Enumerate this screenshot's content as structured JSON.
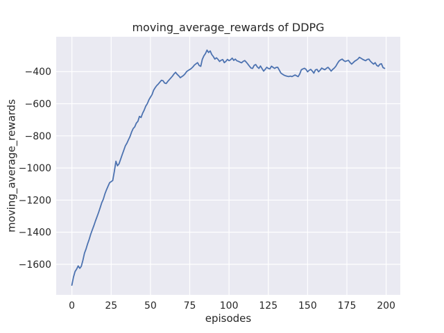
{
  "chart_data": {
    "type": "line",
    "title": "moving_average_rewards of DDPG",
    "xlabel": "episodes",
    "ylabel": "moving_average_rewards",
    "xlim": [
      -10,
      209
    ],
    "ylim": [
      -1790,
      -183
    ],
    "xticks": [
      0,
      25,
      50,
      75,
      100,
      125,
      150,
      175,
      200
    ],
    "yticks": [
      -400,
      -600,
      -800,
      -1000,
      -1200,
      -1400,
      -1600
    ],
    "grid": true,
    "legend": false,
    "plot_bg": "#EAEAF2",
    "grid_color": "#FFFFFF",
    "fig_bg": "#FFFFFF",
    "text_color": "#262626",
    "series": [
      {
        "name": "moving_average_rewards",
        "color": "#4C72B0",
        "x_start": 0,
        "x_step": 1,
        "values": [
          -1730,
          -1680,
          -1645,
          -1630,
          -1610,
          -1625,
          -1612,
          -1575,
          -1530,
          -1505,
          -1472,
          -1444,
          -1412,
          -1385,
          -1358,
          -1330,
          -1303,
          -1276,
          -1247,
          -1216,
          -1195,
          -1162,
          -1136,
          -1114,
          -1092,
          -1085,
          -1078,
          -1022,
          -958,
          -986,
          -974,
          -945,
          -918,
          -890,
          -862,
          -846,
          -824,
          -804,
          -776,
          -754,
          -744,
          -721,
          -709,
          -679,
          -686,
          -659,
          -640,
          -615,
          -599,
          -576,
          -559,
          -543,
          -516,
          -500,
          -487,
          -477,
          -465,
          -454,
          -457,
          -471,
          -474,
          -461,
          -450,
          -439,
          -428,
          -414,
          -404,
          -417,
          -426,
          -438,
          -431,
          -424,
          -414,
          -400,
          -393,
          -387,
          -380,
          -371,
          -359,
          -351,
          -344,
          -362,
          -367,
          -324,
          -302,
          -287,
          -266,
          -281,
          -271,
          -293,
          -306,
          -322,
          -314,
          -324,
          -337,
          -329,
          -325,
          -344,
          -336,
          -324,
          -332,
          -326,
          -316,
          -330,
          -322,
          -333,
          -336,
          -341,
          -345,
          -336,
          -331,
          -341,
          -353,
          -366,
          -378,
          -380,
          -361,
          -356,
          -371,
          -380,
          -365,
          -381,
          -397,
          -386,
          -373,
          -380,
          -383,
          -366,
          -373,
          -380,
          -374,
          -373,
          -391,
          -409,
          -416,
          -422,
          -426,
          -429,
          -431,
          -428,
          -431,
          -426,
          -421,
          -426,
          -431,
          -414,
          -389,
          -383,
          -379,
          -386,
          -401,
          -392,
          -386,
          -397,
          -410,
          -389,
          -386,
          -401,
          -391,
          -378,
          -384,
          -388,
          -379,
          -373,
          -384,
          -397,
          -386,
          -378,
          -366,
          -349,
          -334,
          -327,
          -322,
          -331,
          -337,
          -333,
          -330,
          -343,
          -353,
          -344,
          -335,
          -329,
          -322,
          -311,
          -317,
          -323,
          -328,
          -332,
          -324,
          -322,
          -336,
          -345,
          -353,
          -344,
          -361,
          -367,
          -354,
          -351,
          -375,
          -380
        ]
      }
    ]
  }
}
